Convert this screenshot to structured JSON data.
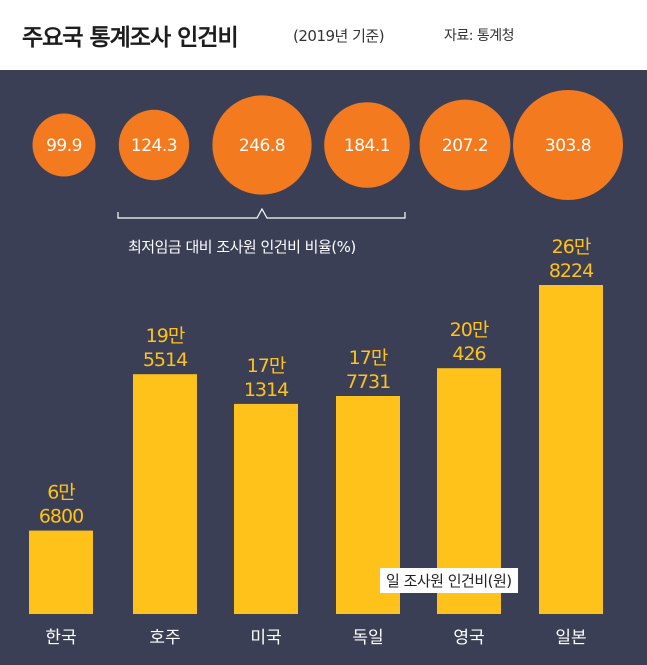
{
  "header": {
    "title": "주요국 통계조사 인건비",
    "subtitle": "(2019년 기준)",
    "source": "자료: 통계청"
  },
  "colors": {
    "background": "#3a3f55",
    "bubble": "#f47a20",
    "bar": "#ffc21a",
    "bar_label": "#ffc21a",
    "header_bg": "#ffffff"
  },
  "chart_data": [
    {
      "type": "scatter",
      "encoding": "bubble-size",
      "caption": "최저임금 대비 조사원 인건비 비율(%)",
      "categories": [
        "한국",
        "호주",
        "미국",
        "독일",
        "영국",
        "일본"
      ],
      "values": [
        99.9,
        124.3,
        246.8,
        184.1,
        207.2,
        303.8
      ],
      "labels": [
        "99.9",
        "124.3",
        "246.8",
        "184.1",
        "207.2",
        "303.8"
      ]
    },
    {
      "type": "bar",
      "legend": "일 조사원 인건비(원)",
      "categories": [
        "한국",
        "호주",
        "미국",
        "독일",
        "영국",
        "일본"
      ],
      "values": [
        68000,
        195514,
        171314,
        177731,
        200426,
        268224
      ],
      "labels": [
        [
          "6만",
          "6800"
        ],
        [
          "19만",
          "5514"
        ],
        [
          "17만",
          "1314"
        ],
        [
          "17만",
          "7731"
        ],
        [
          "20만",
          "426"
        ],
        [
          "26만",
          "8224"
        ]
      ]
    }
  ]
}
